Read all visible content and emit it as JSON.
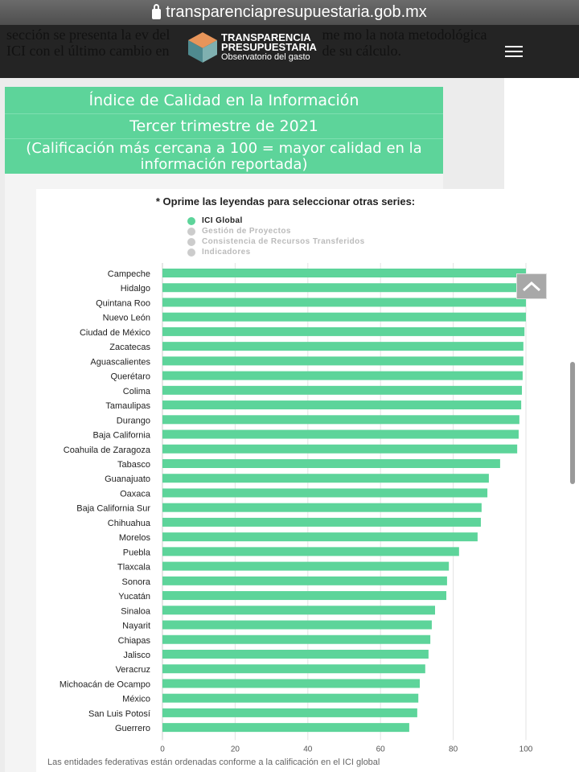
{
  "browser": {
    "url": "transparenciapresupuestaria.gob.mx"
  },
  "header": {
    "background_text": "sección se presenta la ev           del ICI con el último cambio en me            mo la nota metodológica de su cálculo.",
    "logo_line1": "TRANSPARENCIA",
    "logo_line2": "PRESUPUESTARIA",
    "logo_line3": "Observatorio del gasto"
  },
  "title_box": {
    "line1": "Índice de Calidad en la Información",
    "line2": "Tercer trimestre de 2021",
    "line3": "(Calificación más cercana a 100 = mayor calidad en la información reportada)"
  },
  "chart_data": {
    "type": "bar",
    "orientation": "horizontal",
    "title": "* Oprime las leyendas para seleccionar otras series:",
    "legend": [
      {
        "label": "ICI Global",
        "active": true
      },
      {
        "label": "Gestión de Proyectos",
        "active": false
      },
      {
        "label": "Consistencia de Recursos Transferidos",
        "active": false
      },
      {
        "label": "Indicadores",
        "active": false
      }
    ],
    "categories": [
      "Campeche",
      "Hidalgo",
      "Quintana Roo",
      "Nuevo León",
      "Ciudad de México",
      "Zacatecas",
      "Aguascalientes",
      "Querétaro",
      "Colima",
      "Tamaulipas",
      "Durango",
      "Baja California",
      "Coahuila de Zaragoza",
      "Tabasco",
      "Guanajuato",
      "Oaxaca",
      "Baja California Sur",
      "Chihuahua",
      "Morelos",
      "Puebla",
      "Tlaxcala",
      "Sonora",
      "Yucatán",
      "Sinaloa",
      "Nayarit",
      "Chiapas",
      "Jalisco",
      "Veracruz",
      "Michoacán de Ocampo",
      "México",
      "San Luis Potosí",
      "Guerrero"
    ],
    "series": [
      {
        "name": "ICI Global",
        "color": "#5dd49a",
        "values": [
          100,
          100,
          100,
          100,
          99.6,
          99.3,
          99.3,
          99.1,
          98.9,
          98.7,
          98.2,
          98.0,
          97.6,
          92.9,
          89.8,
          89.4,
          87.8,
          87.6,
          86.7,
          81.6,
          78.8,
          78.3,
          78.1,
          75.0,
          74.1,
          73.7,
          73.2,
          72.3,
          70.8,
          70.4,
          70.1,
          67.9
        ]
      }
    ],
    "xlim": [
      0,
      100
    ],
    "xticks": [
      0,
      20,
      40,
      60,
      80,
      100
    ],
    "grid": true,
    "note": "Las entidades federativas están ordenadas conforme a la calificación en el ICI global"
  }
}
